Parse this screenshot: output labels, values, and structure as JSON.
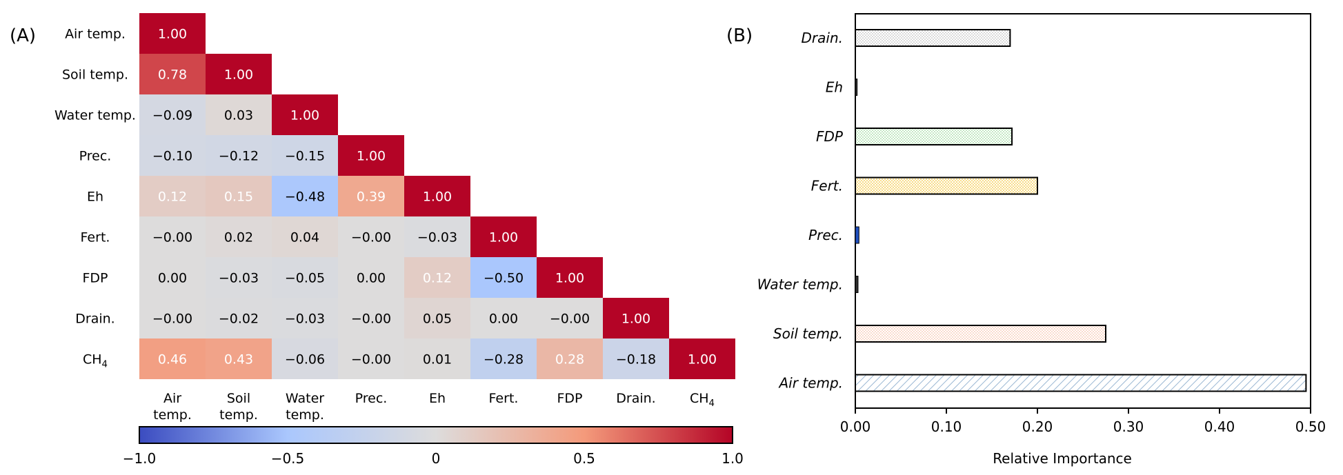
{
  "panel_a": {
    "label": "(A)",
    "variables": [
      "Air temp.",
      "Soil temp.",
      "Water temp.",
      "Prec.",
      "Eh",
      "Fert.",
      "FDP",
      "Drain.",
      "CH4"
    ],
    "row_labels": [
      "Air temp.",
      "Soil temp.",
      "Water temp.",
      "Prec.",
      "Eh",
      "Fert.",
      "FDP",
      "Drain.",
      "CH₄"
    ],
    "col_labels": [
      [
        "Air",
        "temp."
      ],
      [
        "Soil",
        "temp."
      ],
      [
        "Water",
        "temp."
      ],
      [
        "Prec."
      ],
      [
        "Eh"
      ],
      [
        "Fert."
      ],
      [
        "FDP"
      ],
      [
        "Drain."
      ],
      [
        "CH₄"
      ]
    ],
    "colorbar": {
      "ticks": [
        "−1.0",
        "−0.5",
        "0",
        "0.5",
        "1.0"
      ],
      "tick_values": [
        -1.0,
        -0.5,
        0,
        0.5,
        1.0
      ],
      "colors": [
        "#3b4cc0",
        "#aac7fd",
        "#dddcdc",
        "#f49a7b",
        "#b40426"
      ]
    }
  },
  "panel_b": {
    "label": "(B)",
    "xlabel": "Relative Importance",
    "x_ticks": [
      "0.00",
      "0.10",
      "0.20",
      "0.30",
      "0.40",
      "0.50"
    ]
  },
  "chart_data": [
    {
      "type": "heatmap",
      "title": "",
      "rows": [
        "Air temp.",
        "Soil temp.",
        "Water temp.",
        "Prec.",
        "Eh",
        "Fert.",
        "FDP",
        "Drain.",
        "CH4"
      ],
      "columns": [
        "Air temp.",
        "Soil temp.",
        "Water temp.",
        "Prec.",
        "Eh",
        "Fert.",
        "FDP",
        "Drain.",
        "CH4"
      ],
      "matrix": [
        [
          "1.00"
        ],
        [
          "0.78",
          "1.00"
        ],
        [
          "−0.09",
          "0.03",
          "1.00"
        ],
        [
          "−0.10",
          "−0.12",
          "−0.15",
          "1.00"
        ],
        [
          "0.12",
          "0.15",
          "−0.48",
          "0.39",
          "1.00"
        ],
        [
          "−0.00",
          "0.02",
          "0.04",
          "−0.00",
          "−0.03",
          "1.00"
        ],
        [
          "0.00",
          "−0.03",
          "−0.05",
          "0.00",
          "0.12",
          "−0.50",
          "1.00"
        ],
        [
          "−0.00",
          "−0.02",
          "−0.03",
          "−0.00",
          "0.05",
          "0.00",
          "−0.00",
          "1.00"
        ],
        [
          "0.46",
          "0.43",
          "−0.06",
          "−0.00",
          "0.01",
          "−0.28",
          "0.28",
          "−0.18",
          "1.00"
        ]
      ],
      "value_range": [
        -1.0,
        1.0
      ],
      "colormap": "coolwarm"
    },
    {
      "type": "bar",
      "orientation": "horizontal",
      "title": "",
      "xlabel": "Relative Importance",
      "ylabel": "",
      "categories": [
        "Drain.",
        "Eh",
        "FDP",
        "Fert.",
        "Prec.",
        "Water temp.",
        "Soil temp.",
        "Air temp."
      ],
      "values": [
        0.17,
        0.002,
        0.172,
        0.2,
        0.004,
        0.003,
        0.275,
        0.495
      ],
      "colors": [
        "#b0b0b0",
        "#303030",
        "#7fcf7f",
        "#f5c842",
        "#1f4fbf",
        "#303030",
        "#f4a582",
        "#9ab7d3"
      ],
      "xlim": [
        0.0,
        0.5
      ]
    }
  ]
}
